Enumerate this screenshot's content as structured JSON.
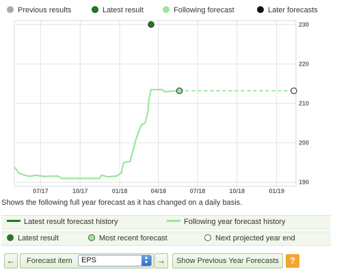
{
  "legend_top": [
    {
      "label": "Previous results",
      "color": "#aaaaaa",
      "border": "#aaaaaa"
    },
    {
      "label": "Latest result",
      "color": "#1e7d1e",
      "border": "#145214"
    },
    {
      "label": "Following forecast",
      "color": "#9be59b",
      "border": "#9be59b"
    },
    {
      "label": "Later forecasts",
      "color": "#111111",
      "border": "#111111"
    }
  ],
  "caption": "Shows the following full year forecast as it has changed on a daily basis.",
  "history_legend": [
    {
      "label": "Latest result forecast history",
      "color": "#1e7d1e"
    },
    {
      "label": "Following year forecast history",
      "color": "#9be59b"
    }
  ],
  "marker_legend": [
    {
      "label": "Latest result",
      "color": "#1e7d1e"
    },
    {
      "label": "Most recent forecast",
      "color": "#9be59b"
    },
    {
      "label": "Next projected year end",
      "color": "#ffffff"
    }
  ],
  "toolbar": {
    "prev_arrow": "←",
    "label": "Forecast item",
    "selected": "EPS",
    "next_arrow": "→",
    "show_prev_button": "Show Previous Year Forecasts",
    "help": "?"
  },
  "chart_data": {
    "type": "line",
    "x_ticks": [
      "07/17",
      "10/17",
      "01/18",
      "04/18",
      "07/18",
      "10/18",
      "01/19"
    ],
    "y_ticks": [
      190,
      200,
      210,
      220,
      230
    ],
    "ylim": [
      189,
      231
    ],
    "x_range": [
      "2017-05-01",
      "2019-02-15"
    ],
    "series": [
      {
        "name": "Following year forecast history",
        "color": "#9be59b",
        "points": [
          [
            "2017-05-01",
            193.8
          ],
          [
            "2017-05-05",
            193.4
          ],
          [
            "2017-05-10",
            192.4
          ],
          [
            "2017-05-20",
            192.0
          ],
          [
            "2017-06-05",
            191.5
          ],
          [
            "2017-06-20",
            191.8
          ],
          [
            "2017-07-10",
            191.5
          ],
          [
            "2017-08-10",
            191.6
          ],
          [
            "2017-08-20",
            191.0
          ],
          [
            "2017-09-20",
            191.0
          ],
          [
            "2017-10-20",
            191.0
          ],
          [
            "2017-11-15",
            191.0
          ],
          [
            "2017-11-20",
            191.8
          ],
          [
            "2017-12-05",
            191.4
          ],
          [
            "2017-12-25",
            191.6
          ],
          [
            "2018-01-05",
            192.4
          ],
          [
            "2018-01-10",
            195.0
          ],
          [
            "2018-01-25",
            195.3
          ],
          [
            "2018-02-01",
            198.0
          ],
          [
            "2018-02-08",
            201.0
          ],
          [
            "2018-02-20",
            204.5
          ],
          [
            "2018-03-01",
            205.0
          ],
          [
            "2018-03-08",
            208.0
          ],
          [
            "2018-03-10",
            211.0
          ],
          [
            "2018-03-15",
            213.5
          ],
          [
            "2018-04-10",
            213.5
          ],
          [
            "2018-04-15",
            213.0
          ],
          [
            "2018-05-20",
            213.2
          ]
        ]
      }
    ],
    "projection": {
      "from": [
        "2018-05-20",
        213.2
      ],
      "to": [
        "2019-02-10",
        213.2
      ]
    },
    "markers": [
      {
        "name": "Latest result",
        "x": "2018-03-15",
        "y": 230,
        "fill": "#1e7d1e"
      },
      {
        "name": "Most recent forecast",
        "x": "2018-05-20",
        "y": 213.2,
        "fill": "#9be59b"
      },
      {
        "name": "Next projected year end",
        "x": "2019-02-10",
        "y": 213.2,
        "fill": "#ffffff"
      }
    ],
    "grid": true
  }
}
